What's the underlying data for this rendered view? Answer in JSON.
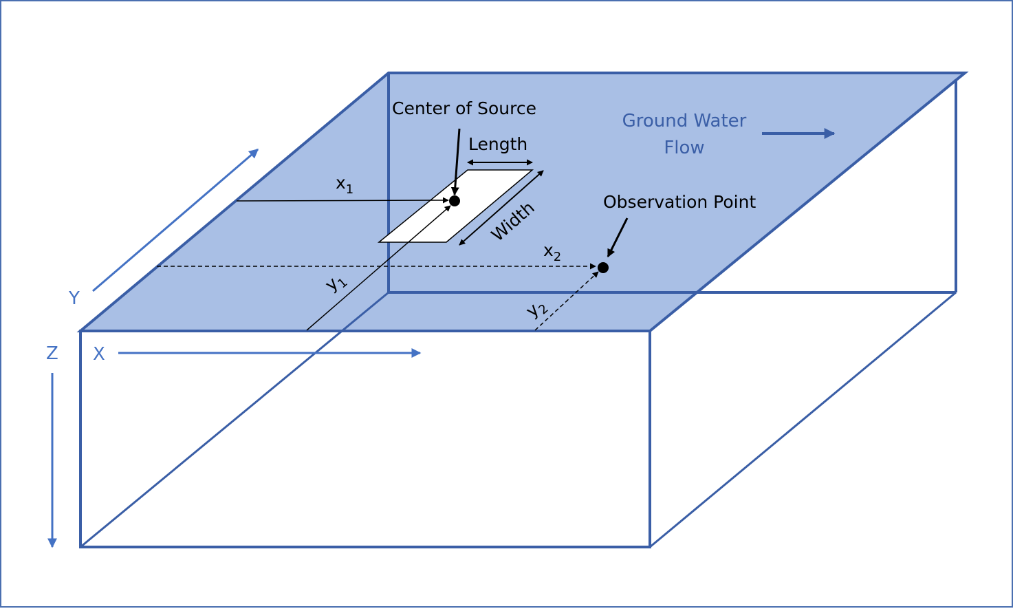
{
  "labels": {
    "center_of_source": "Center of Source",
    "length": "Length",
    "width": "Width",
    "ground_water_line1": "Ground Water",
    "ground_water_line2": "Flow",
    "observation_point": "Observation Point",
    "x1_base": "x",
    "x1_sub": "1",
    "x2_base": "x",
    "x2_sub": "2",
    "y1_base": "y",
    "y1_sub": "1",
    "y2_base": "y",
    "y2_sub": "2",
    "axis_x": "X",
    "axis_y": "Y",
    "axis_z": "Z"
  },
  "colors": {
    "outline": "#3a5ea6",
    "top_fill": "#a9bfe5",
    "axis": "#4472c4",
    "flow_text": "#3a5ea6",
    "black": "#000000",
    "frame": "#4a6fb0"
  }
}
